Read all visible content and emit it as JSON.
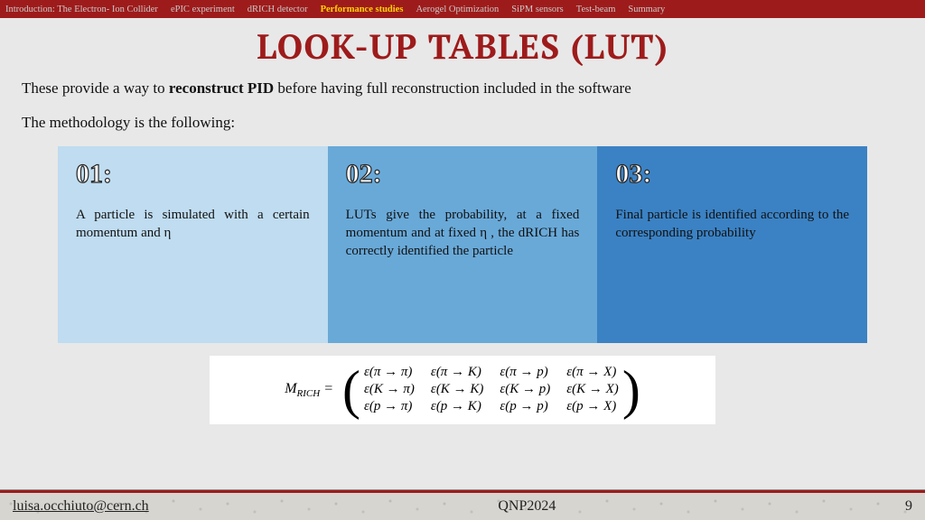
{
  "nav": {
    "items": [
      "Introduction: The Electron- Ion Collider",
      "ePIC experiment",
      "dRICH detector",
      "Performance studies",
      "Aerogel Optimization",
      "SiPM sensors",
      "Test-beam",
      "Summary"
    ],
    "active_index": 3,
    "bg_color": "#9e1b1b",
    "active_color": "#ffd400",
    "inactive_color": "#c9c9c9"
  },
  "title": "LOOK-UP TABLES (LUT)",
  "title_color": "#9e1b1b",
  "intro_prefix": "These provide a way to ",
  "intro_bold": "reconstruct PID",
  "intro_suffix": " before having full reconstruction included in the software",
  "method_line": "The methodology is the following:",
  "steps": [
    {
      "num": "01:",
      "text": "A particle is simulated with a certain momentum and η",
      "bg": "#bfdcf0"
    },
    {
      "num": "02:",
      "text": "LUTs give the probability, at a fixed momentum and at fixed η , the dRICH has correctly identified the particle",
      "bg": "#69a9d8"
    },
    {
      "num": "03:",
      "text": "Final particle is identified according to the corresponding probability",
      "bg": "#3b82c4"
    }
  ],
  "equation": {
    "lhs": "M",
    "lhs_sub": "RICH",
    "rows": [
      [
        "ε(π → π)",
        "ε(π → K)",
        "ε(π → p)",
        "ε(π → X)"
      ],
      [
        "ε(K → π)",
        "ε(K → K)",
        "ε(K → p)",
        "ε(K → X)"
      ],
      [
        "ε(p → π)",
        "ε(p → K)",
        "ε(p → p)",
        "ε(p → X)"
      ]
    ],
    "bg": "#ffffff"
  },
  "footer": {
    "email": "luisa.occhiuto@cern.ch",
    "conf": "QNP2024",
    "page": "9",
    "bar_color": "#9e1b1b"
  },
  "slide_bg": "#e8e8e8"
}
